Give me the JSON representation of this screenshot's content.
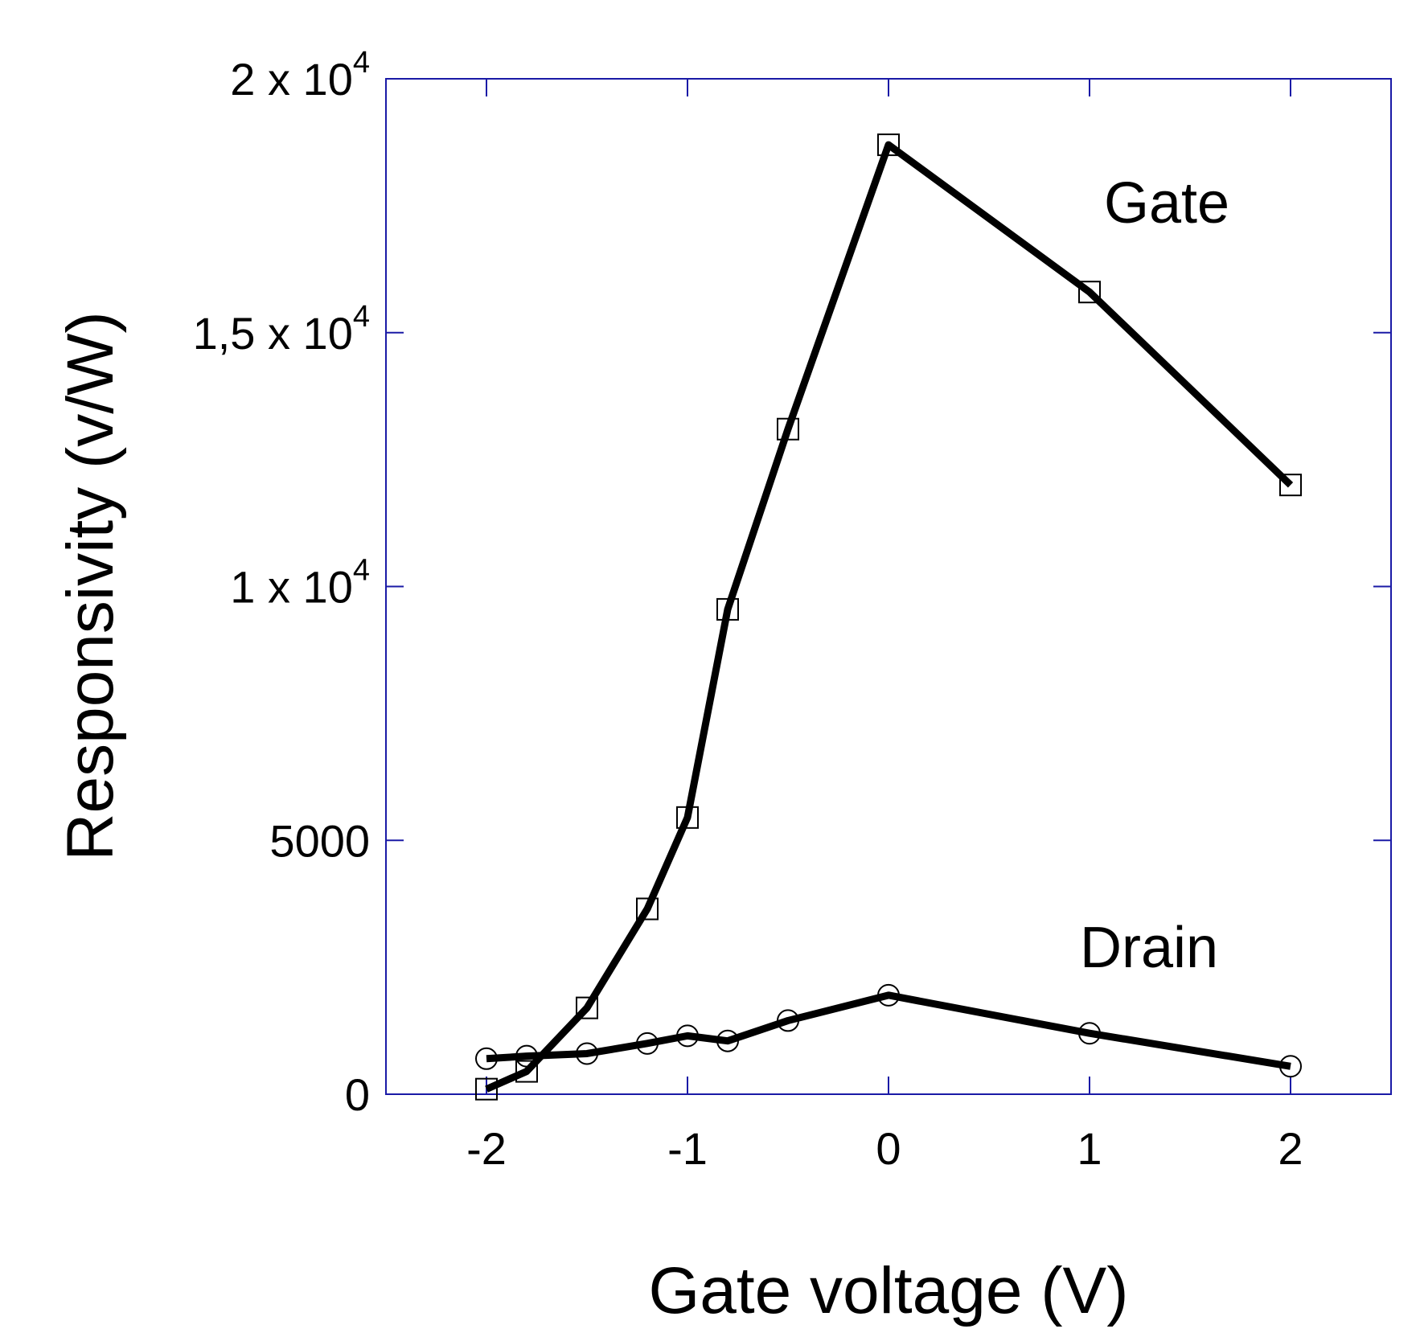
{
  "chart_data": {
    "type": "line",
    "title": "",
    "xlabel": "Gate voltage (V)",
    "ylabel": "Responsivity (v/W)",
    "xlim": [
      -2.5,
      2.5
    ],
    "ylim": [
      0,
      20000
    ],
    "xticks": [
      {
        "value": -2,
        "label": "-2"
      },
      {
        "value": -1,
        "label": "-1"
      },
      {
        "value": 0,
        "label": "0"
      },
      {
        "value": 1,
        "label": "1"
      },
      {
        "value": 2,
        "label": "2"
      }
    ],
    "yticks": [
      {
        "value": 0,
        "mantissa": "0",
        "exponent": ""
      },
      {
        "value": 5000,
        "mantissa": "5000",
        "exponent": ""
      },
      {
        "value": 10000,
        "mantissa": "1 x 10",
        "exponent": "4"
      },
      {
        "value": 15000,
        "mantissa": "1,5 x 10",
        "exponent": "4"
      },
      {
        "value": 20000,
        "mantissa": "2 x 10",
        "exponent": "4"
      }
    ],
    "grid": false,
    "series": [
      {
        "name": "Gate",
        "marker": "square",
        "x": [
          -2,
          -1.8,
          -1.5,
          -1.2,
          -1,
          -0.8,
          -0.5,
          0,
          1,
          2
        ],
        "y": [
          100,
          450,
          1700,
          3650,
          5450,
          9550,
          13100,
          18700,
          15800,
          12000
        ]
      },
      {
        "name": "Drain",
        "marker": "circle",
        "x": [
          -2,
          -1.8,
          -1.5,
          -1.2,
          -1,
          -0.8,
          -0.5,
          0,
          1,
          2
        ],
        "y": [
          700,
          750,
          800,
          1000,
          1150,
          1050,
          1450,
          1950,
          1200,
          550
        ]
      }
    ],
    "annotations": [
      {
        "text": "Gate",
        "series": "Gate"
      },
      {
        "text": "Drain",
        "series": "Drain"
      }
    ],
    "colors": {
      "frame": "#1a1aa6",
      "line": "#000000",
      "marker": "#000000"
    }
  }
}
